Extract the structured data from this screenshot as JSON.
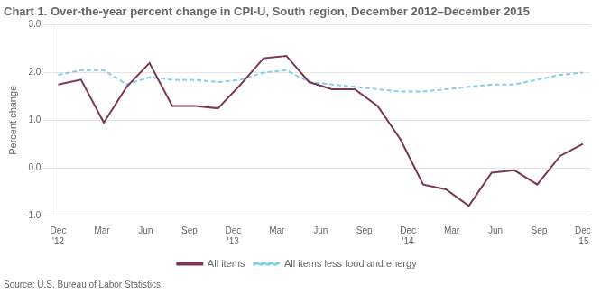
{
  "chart_data": {
    "type": "line",
    "title": "Chart 1. Over-the-year percent change in CPI-U, South region, December 2012–December 2015",
    "ylabel": "Percent change",
    "annotations": [
      "Source: U.S. Bureau of Labor Statistics."
    ],
    "x": [
      0,
      1.5652173913,
      3.1304347826,
      4.6956521739,
      6.2608695652,
      7.8260869565,
      9.3913043478,
      10.9565217391,
      12.5217391304,
      14.0869565217,
      15.652173913,
      17.2173913043,
      18.7826086957,
      20.347826087,
      21.9130434783,
      23.4782608696,
      25.0434782609,
      26.6086956522,
      28.1739130435,
      29.7391304348,
      31.3043478261,
      32.8695652174,
      34.4347826087,
      36
    ],
    "series": [
      {
        "name": "All items",
        "color": "#7B3557",
        "line_style": "solid",
        "marker": "none",
        "values": [
          1.75,
          1.85,
          0.95,
          1.7,
          2.2,
          1.3,
          1.3,
          1.25,
          1.75,
          2.3,
          2.35,
          1.8,
          1.65,
          1.65,
          1.3,
          0.6,
          -0.35,
          -0.45,
          -0.8,
          -0.1,
          -0.05,
          -0.35,
          0.25,
          0.5
        ]
      },
      {
        "name": "All items less food and energy",
        "color": "#87CEEB",
        "line_style": "dashed",
        "marker": "none",
        "values": [
          1.95,
          2.05,
          2.05,
          1.75,
          1.9,
          1.85,
          1.85,
          1.8,
          1.85,
          2.0,
          2.05,
          1.8,
          1.75,
          1.7,
          1.65,
          1.6,
          1.6,
          1.65,
          1.7,
          1.75,
          1.75,
          1.85,
          1.95,
          2.0
        ]
      }
    ],
    "xlim": [
      -0.5,
      36.5
    ],
    "xticks": [
      {
        "value": 0,
        "label": "Dec\n'12"
      },
      {
        "value": 3,
        "label": "Mar"
      },
      {
        "value": 6,
        "label": "Jun"
      },
      {
        "value": 9,
        "label": "Sep"
      },
      {
        "value": 12,
        "label": "Dec\n'13"
      },
      {
        "value": 15,
        "label": "Mar"
      },
      {
        "value": 18,
        "label": "Jun"
      },
      {
        "value": 21,
        "label": "Sep"
      },
      {
        "value": 24,
        "label": "Dec\n'14"
      },
      {
        "value": 27,
        "label": "Mar"
      },
      {
        "value": 30,
        "label": "Jun"
      },
      {
        "value": 33,
        "label": "Sep"
      },
      {
        "value": 36,
        "label": "Dec\n'15"
      }
    ],
    "ylim": [
      -1.0,
      3.0
    ],
    "yticks": [
      {
        "value": -1.0,
        "label": "-1.0"
      },
      {
        "value": 0.0,
        "label": "0.0"
      },
      {
        "value": 1.0,
        "label": "1.0"
      },
      {
        "value": 2.0,
        "label": "2.0"
      },
      {
        "value": 3.0,
        "label": "3.0"
      }
    ],
    "grid": "y",
    "legend": "bottom"
  }
}
